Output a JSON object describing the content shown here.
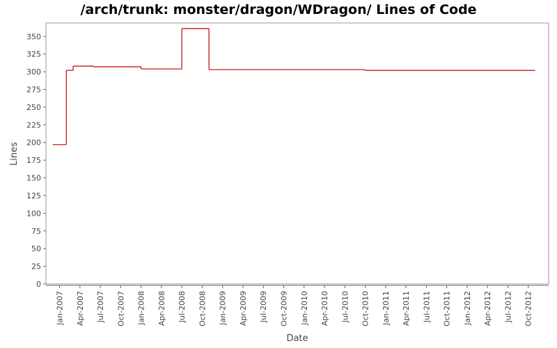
{
  "chart_data": {
    "type": "step",
    "title": "/arch/trunk: monster/dragon/WDragon/ Lines of Code",
    "x_label": "Date",
    "y_label": "Lines",
    "x": [
      "2006-12",
      "2007-02",
      "2007-03",
      "2007-06",
      "2008-01",
      "2008-07",
      "2008-11",
      "2010-10",
      "2012-11"
    ],
    "series": [
      {
        "name": "Lines",
        "color": "#c00000",
        "values": [
          197,
          302,
          308,
          307,
          304,
          361,
          303,
          302,
          302
        ]
      }
    ],
    "xlim": [
      "2006-11",
      "2013-01"
    ],
    "xticks": [
      {
        "value": "2007-01",
        "label": "Jan-2007"
      },
      {
        "value": "2007-04",
        "label": "Apr-2007"
      },
      {
        "value": "2007-07",
        "label": "Jul-2007"
      },
      {
        "value": "2007-10",
        "label": "Oct-2007"
      },
      {
        "value": "2008-01",
        "label": "Jan-2008"
      },
      {
        "value": "2008-04",
        "label": "Apr-2008"
      },
      {
        "value": "2008-07",
        "label": "Jul-2008"
      },
      {
        "value": "2008-10",
        "label": "Oct-2008"
      },
      {
        "value": "2009-01",
        "label": "Jan-2009"
      },
      {
        "value": "2009-04",
        "label": "Apr-2009"
      },
      {
        "value": "2009-07",
        "label": "Jul-2009"
      },
      {
        "value": "2009-10",
        "label": "Oct-2009"
      },
      {
        "value": "2010-01",
        "label": "Jan-2010"
      },
      {
        "value": "2010-04",
        "label": "Apr-2010"
      },
      {
        "value": "2010-07",
        "label": "Jul-2010"
      },
      {
        "value": "2010-10",
        "label": "Oct-2010"
      },
      {
        "value": "2011-01",
        "label": "Jan-2011"
      },
      {
        "value": "2011-04",
        "label": "Apr-2011"
      },
      {
        "value": "2011-07",
        "label": "Jul-2011"
      },
      {
        "value": "2011-10",
        "label": "Oct-2011"
      },
      {
        "value": "2012-01",
        "label": "Jan-2012"
      },
      {
        "value": "2012-04",
        "label": "Apr-2012"
      },
      {
        "value": "2012-07",
        "label": "Jul-2012"
      },
      {
        "value": "2012-10",
        "label": "Oct-2012"
      }
    ],
    "ylim": [
      0,
      369
    ],
    "yticks": [
      0,
      25,
      50,
      75,
      100,
      125,
      150,
      175,
      200,
      225,
      250,
      275,
      300,
      325,
      350
    ],
    "grid": false
  }
}
